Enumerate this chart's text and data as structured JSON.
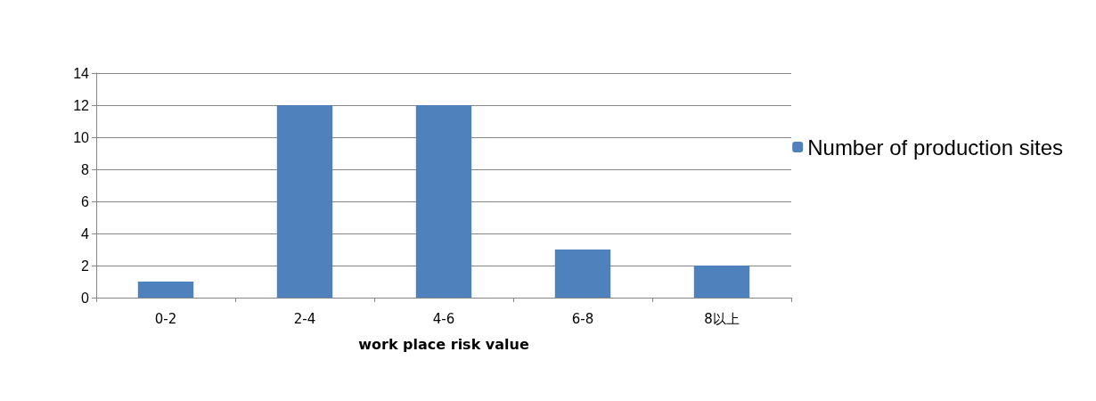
{
  "chart_data": {
    "type": "bar",
    "xlabel": "work place risk value",
    "categories": [
      "0-2",
      "2-4",
      "4-6",
      "6-8",
      "8以上"
    ],
    "series": [
      {
        "name": "Number of production sites",
        "color": "#4f81bd",
        "values": [
          1,
          12,
          12,
          3,
          2
        ]
      }
    ],
    "ylim": [
      0,
      14
    ],
    "yticks": [
      0,
      2,
      4,
      6,
      8,
      10,
      12,
      14
    ],
    "grid": "y",
    "legend": "right"
  }
}
